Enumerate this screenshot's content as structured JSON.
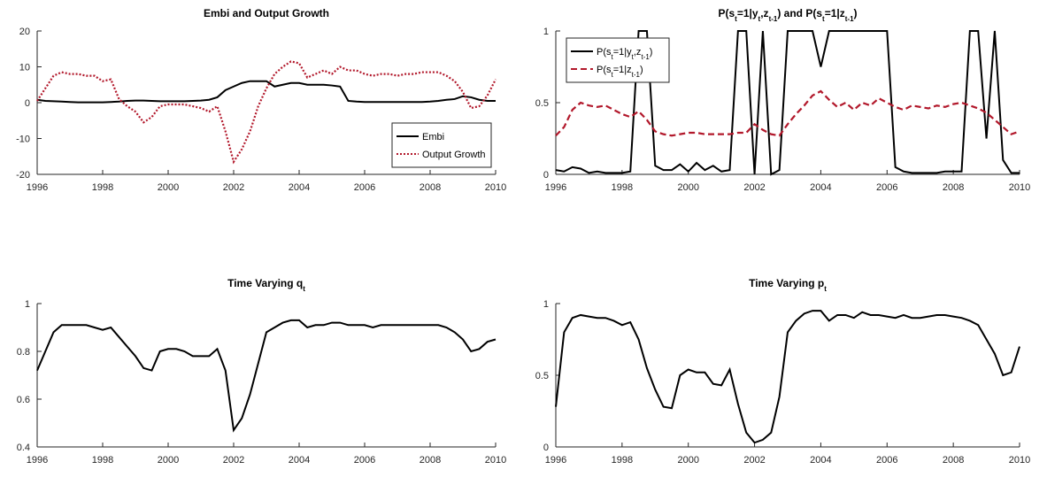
{
  "chart_data": [
    {
      "type": "line",
      "title": "Embi and Output Growth",
      "x": [
        1996,
        1996.25,
        1996.5,
        1996.75,
        1997,
        1997.25,
        1997.5,
        1997.75,
        1998,
        1998.25,
        1998.5,
        1998.75,
        1999,
        1999.25,
        1999.5,
        1999.75,
        2000,
        2000.25,
        2000.5,
        2000.75,
        2001,
        2001.25,
        2001.5,
        2001.75,
        2002,
        2002.25,
        2002.5,
        2002.75,
        2003,
        2003.25,
        2003.5,
        2003.75,
        2004,
        2004.25,
        2004.5,
        2004.75,
        2005,
        2005.25,
        2005.5,
        2005.75,
        2006,
        2006.25,
        2006.5,
        2006.75,
        2007,
        2007.25,
        2007.5,
        2007.75,
        2008,
        2008.25,
        2008.5,
        2008.75,
        2009,
        2009.25,
        2009.5,
        2009.75,
        2010
      ],
      "series": [
        {
          "name": "Embi",
          "color": "#000000",
          "style": "solid",
          "values": [
            0.8,
            0.5,
            0.4,
            0.3,
            0.2,
            0.1,
            0.1,
            0.1,
            0.1,
            0.2,
            0.3,
            0.5,
            0.6,
            0.6,
            0.5,
            0.4,
            0.4,
            0.4,
            0.4,
            0.5,
            0.6,
            0.8,
            1.5,
            3.5,
            4.5,
            5.5,
            6,
            6,
            6,
            4.5,
            5,
            5.5,
            5.5,
            5,
            5,
            5,
            4.8,
            4.5,
            0.5,
            0.3,
            0.2,
            0.2,
            0.2,
            0.2,
            0.2,
            0.2,
            0.2,
            0.2,
            0.3,
            0.5,
            0.8,
            1,
            1.8,
            1.5,
            0.8,
            0.5,
            0.5
          ]
        },
        {
          "name": "Output Growth",
          "color": "#b2182b",
          "style": "dotted",
          "values": [
            0.5,
            4,
            7.5,
            8.5,
            8,
            8,
            7.5,
            7.5,
            6,
            6.5,
            1,
            -1,
            -2.5,
            -5.5,
            -4,
            -1,
            -0.5,
            -0.5,
            -0.5,
            -1,
            -1.5,
            -2.5,
            -1,
            -8,
            -16.5,
            -13,
            -8,
            -1,
            4,
            8,
            10,
            11.5,
            11,
            7,
            8,
            9,
            8,
            10,
            9,
            9,
            8,
            7.5,
            8,
            8,
            7.5,
            8,
            8,
            8.5,
            8.5,
            8.5,
            7.5,
            6,
            3,
            -1.5,
            -1,
            2,
            6.5
          ]
        }
      ],
      "xlim": [
        1996,
        2010
      ],
      "xticks": [
        1996,
        1998,
        2000,
        2002,
        2004,
        2006,
        2008,
        2010
      ],
      "ylim": [
        -20,
        20
      ],
      "yticks": [
        -20,
        -10,
        0,
        10,
        20
      ],
      "legend": "lower right"
    },
    {
      "type": "line",
      "title": [
        "P(s",
        {
          "sub": "t"
        },
        "=1|y",
        {
          "sub": "t"
        },
        ",z",
        {
          "sub": "t-1"
        },
        ") and P(s",
        {
          "sub": "t"
        },
        "=1|z",
        {
          "sub": "t-1"
        },
        ")"
      ],
      "x": [
        1996,
        1996.25,
        1996.5,
        1996.75,
        1997,
        1997.25,
        1997.5,
        1997.75,
        1998,
        1998.25,
        1998.5,
        1998.75,
        1999,
        1999.25,
        1999.5,
        1999.75,
        2000,
        2000.25,
        2000.5,
        2000.75,
        2001,
        2001.25,
        2001.5,
        2001.75,
        2002,
        2002.25,
        2002.5,
        2002.75,
        2003,
        2003.25,
        2003.5,
        2003.75,
        2004,
        2004.25,
        2004.5,
        2004.75,
        2005,
        2005.25,
        2005.5,
        2005.75,
        2006,
        2006.25,
        2006.5,
        2006.75,
        2007,
        2007.25,
        2007.5,
        2007.75,
        2008,
        2008.25,
        2008.5,
        2008.75,
        2009,
        2009.25,
        2009.5,
        2009.75,
        2010
      ],
      "series": [
        {
          "name": [
            "P(s",
            {
              "sub": "t"
            },
            "=1|y",
            {
              "sub": "t"
            },
            ",z",
            {
              "sub": "t-1"
            },
            ")"
          ],
          "color": "#000000",
          "style": "solid",
          "values": [
            0.03,
            0.02,
            0.05,
            0.04,
            0.01,
            0.02,
            0.01,
            0.01,
            0.01,
            0.02,
            1,
            1,
            0.06,
            0.03,
            0.03,
            0.07,
            0.02,
            0.08,
            0.03,
            0.06,
            0.02,
            0.03,
            1,
            1,
            0,
            1,
            0,
            0.03,
            1,
            1,
            1,
            1,
            0.75,
            1,
            1,
            1,
            1,
            1,
            1,
            1,
            1,
            0.05,
            0.02,
            0.01,
            0.01,
            0.01,
            0.01,
            0.02,
            0.02,
            0.02,
            1,
            1,
            0.25,
            1,
            0.1,
            0.01,
            0.01
          ]
        },
        {
          "name": [
            "P(s",
            {
              "sub": "t"
            },
            "=1|z",
            {
              "sub": "t-1"
            },
            ")"
          ],
          "color": "#b2182b",
          "style": "dashed",
          "values": [
            0.27,
            0.33,
            0.45,
            0.5,
            0.48,
            0.47,
            0.48,
            0.45,
            0.42,
            0.4,
            0.44,
            0.38,
            0.3,
            0.28,
            0.27,
            0.28,
            0.29,
            0.29,
            0.28,
            0.28,
            0.28,
            0.28,
            0.29,
            0.29,
            0.35,
            0.31,
            0.28,
            0.27,
            0.35,
            0.42,
            0.48,
            0.55,
            0.58,
            0.52,
            0.47,
            0.5,
            0.45,
            0.5,
            0.48,
            0.53,
            0.5,
            0.47,
            0.45,
            0.48,
            0.47,
            0.46,
            0.48,
            0.47,
            0.49,
            0.5,
            0.48,
            0.46,
            0.43,
            0.38,
            0.33,
            0.28,
            0.3
          ]
        }
      ],
      "xlim": [
        1996,
        2010
      ],
      "xticks": [
        1996,
        1998,
        2000,
        2002,
        2004,
        2006,
        2008,
        2010
      ],
      "ylim": [
        0,
        1
      ],
      "yticks": [
        0,
        0.5,
        1
      ],
      "legend": "upper left"
    },
    {
      "type": "line",
      "title": [
        "Time Varying q",
        {
          "sub": "t"
        }
      ],
      "x": [
        1996,
        1996.25,
        1996.5,
        1996.75,
        1997,
        1997.25,
        1997.5,
        1997.75,
        1998,
        1998.25,
        1998.5,
        1998.75,
        1999,
        1999.25,
        1999.5,
        1999.75,
        2000,
        2000.25,
        2000.5,
        2000.75,
        2001,
        2001.25,
        2001.5,
        2001.75,
        2002,
        2002.25,
        2002.5,
        2002.75,
        2003,
        2003.25,
        2003.5,
        2003.75,
        2004,
        2004.25,
        2004.5,
        2004.75,
        2005,
        2005.25,
        2005.5,
        2005.75,
        2006,
        2006.25,
        2006.5,
        2006.75,
        2007,
        2007.25,
        2007.5,
        2007.75,
        2008,
        2008.25,
        2008.5,
        2008.75,
        2009,
        2009.25,
        2009.5,
        2009.75,
        2010
      ],
      "series": [
        {
          "color": "#000000",
          "style": "solid",
          "values": [
            0.72,
            0.8,
            0.88,
            0.91,
            0.91,
            0.91,
            0.91,
            0.9,
            0.89,
            0.9,
            0.86,
            0.82,
            0.78,
            0.73,
            0.72,
            0.8,
            0.81,
            0.81,
            0.8,
            0.78,
            0.78,
            0.78,
            0.81,
            0.72,
            0.47,
            0.52,
            0.62,
            0.75,
            0.88,
            0.9,
            0.92,
            0.93,
            0.93,
            0.9,
            0.91,
            0.91,
            0.92,
            0.92,
            0.91,
            0.91,
            0.91,
            0.9,
            0.91,
            0.91,
            0.91,
            0.91,
            0.91,
            0.91,
            0.91,
            0.91,
            0.9,
            0.88,
            0.85,
            0.8,
            0.81,
            0.84,
            0.85
          ]
        }
      ],
      "xlim": [
        1996,
        2010
      ],
      "xticks": [
        1996,
        1998,
        2000,
        2002,
        2004,
        2006,
        2008,
        2010
      ],
      "ylim": [
        0.4,
        1
      ],
      "yticks": [
        0.4,
        0.6,
        0.8,
        1
      ]
    },
    {
      "type": "line",
      "title": [
        "Time Varying p",
        {
          "sub": "t"
        }
      ],
      "x": [
        1996,
        1996.25,
        1996.5,
        1996.75,
        1997,
        1997.25,
        1997.5,
        1997.75,
        1998,
        1998.25,
        1998.5,
        1998.75,
        1999,
        1999.25,
        1999.5,
        1999.75,
        2000,
        2000.25,
        2000.5,
        2000.75,
        2001,
        2001.25,
        2001.5,
        2001.75,
        2002,
        2002.25,
        2002.5,
        2002.75,
        2003,
        2003.25,
        2003.5,
        2003.75,
        2004,
        2004.25,
        2004.5,
        2004.75,
        2005,
        2005.25,
        2005.5,
        2005.75,
        2006,
        2006.25,
        2006.5,
        2006.75,
        2007,
        2007.25,
        2007.5,
        2007.75,
        2008,
        2008.25,
        2008.5,
        2008.75,
        2009,
        2009.25,
        2009.5,
        2009.75,
        2010
      ],
      "series": [
        {
          "color": "#000000",
          "style": "solid",
          "values": [
            0.28,
            0.8,
            0.9,
            0.92,
            0.91,
            0.9,
            0.9,
            0.88,
            0.85,
            0.87,
            0.75,
            0.55,
            0.4,
            0.28,
            0.27,
            0.5,
            0.54,
            0.52,
            0.52,
            0.44,
            0.43,
            0.54,
            0.3,
            0.1,
            0.03,
            0.05,
            0.1,
            0.35,
            0.8,
            0.88,
            0.93,
            0.95,
            0.95,
            0.88,
            0.92,
            0.92,
            0.9,
            0.94,
            0.92,
            0.92,
            0.91,
            0.9,
            0.92,
            0.9,
            0.9,
            0.91,
            0.92,
            0.92,
            0.91,
            0.9,
            0.88,
            0.85,
            0.75,
            0.65,
            0.5,
            0.52,
            0.7
          ]
        }
      ],
      "xlim": [
        1996,
        2010
      ],
      "xticks": [
        1996,
        1998,
        2000,
        2002,
        2004,
        2006,
        2008,
        2010
      ],
      "ylim": [
        0,
        1
      ],
      "yticks": [
        0,
        0.5,
        1
      ]
    }
  ]
}
